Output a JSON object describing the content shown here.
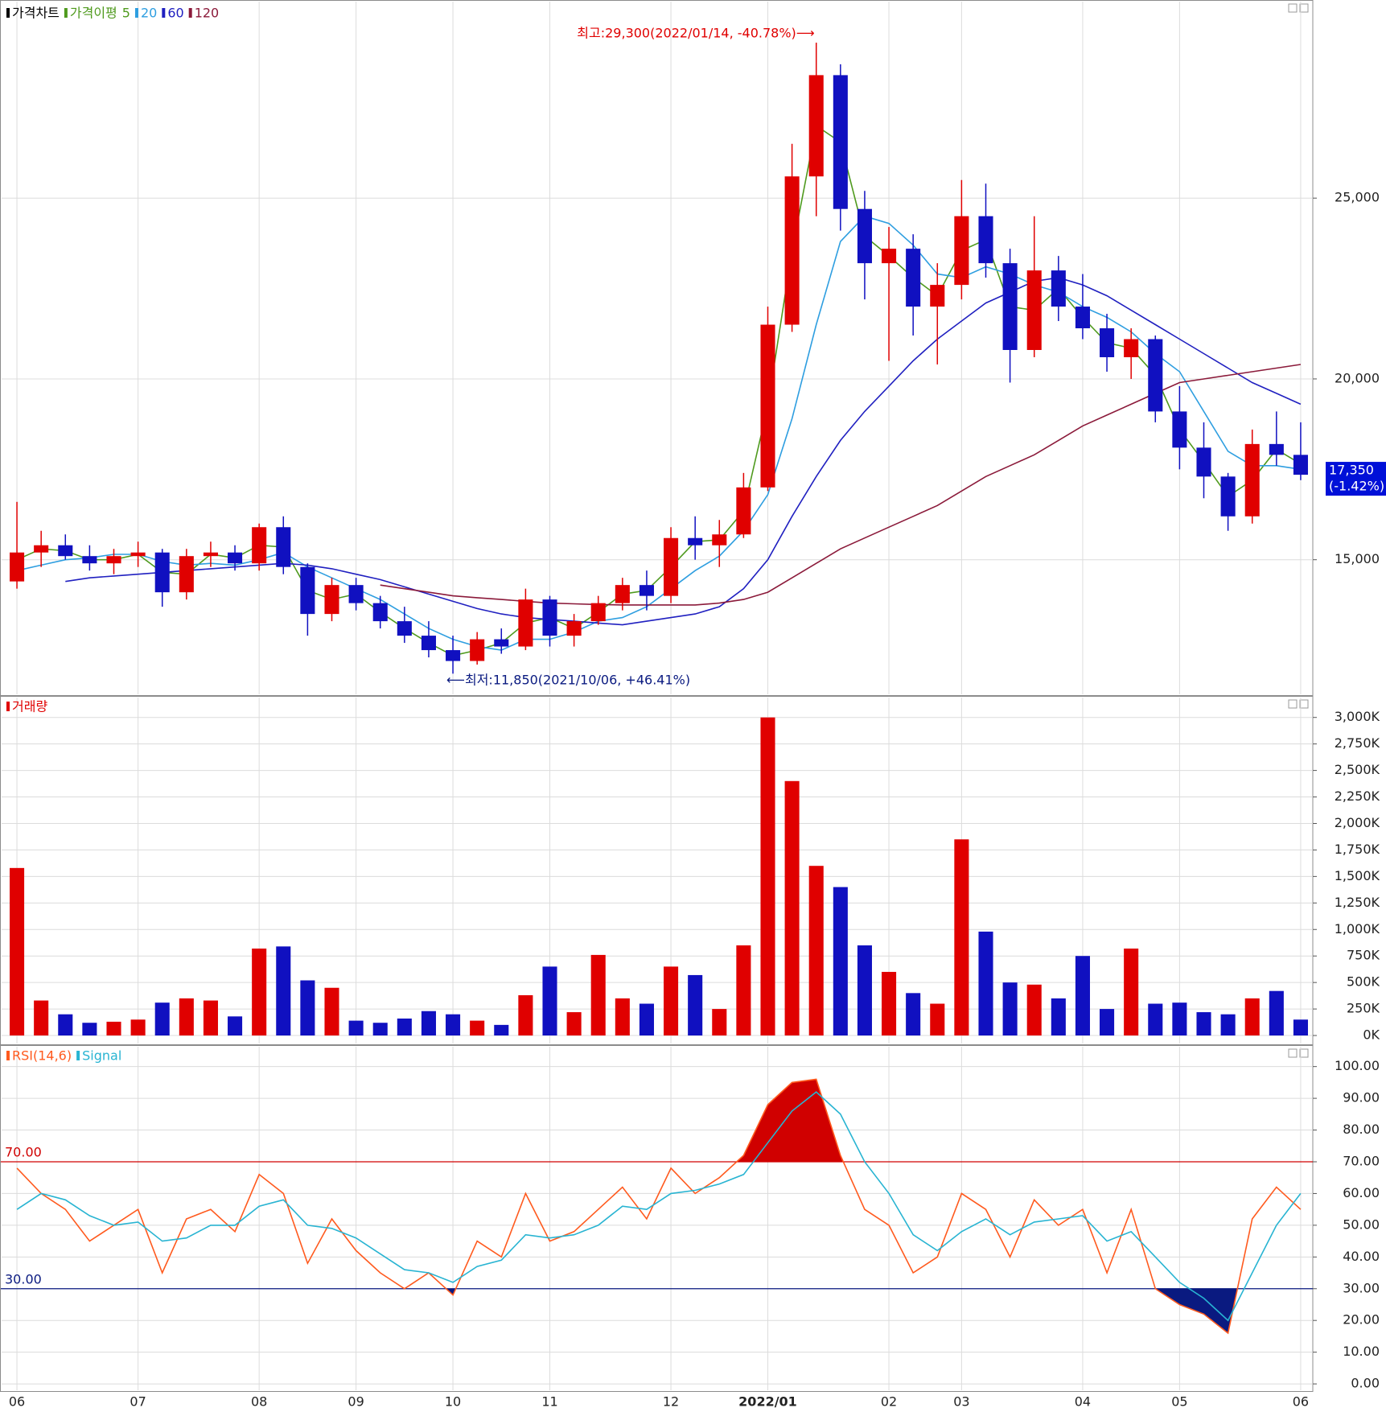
{
  "chart_data": [
    {
      "type": "candlestick",
      "title": "가격차트",
      "ma_title": "가격이평",
      "up_color": "#e00000",
      "down_color": "#1010c0",
      "open": [
        14400,
        15200,
        15400,
        15100,
        14900,
        15100,
        15200,
        14100,
        15100,
        15200,
        14900,
        15900,
        14800,
        13500,
        14300,
        13800,
        13300,
        12900,
        12500,
        12200,
        12800,
        12600,
        13900,
        12900,
        13300,
        13800,
        14300,
        14000,
        15600,
        15400,
        15700,
        17000,
        21500,
        25600,
        28400,
        24700,
        23200,
        23600,
        22000,
        22600,
        24500,
        23200,
        20800,
        23000,
        22000,
        21400,
        20600,
        21100,
        19100,
        18100,
        17300,
        16200,
        18200,
        17900
      ],
      "high": [
        16600,
        15800,
        15700,
        15400,
        15300,
        15500,
        15300,
        15300,
        15500,
        15400,
        16000,
        16200,
        14900,
        14500,
        14500,
        14000,
        13700,
        13300,
        12900,
        13000,
        13100,
        14200,
        14000,
        13500,
        14000,
        14500,
        14700,
        15900,
        16200,
        16100,
        17400,
        22000,
        26500,
        29300,
        28700,
        25200,
        24200,
        24000,
        23200,
        25500,
        25400,
        23600,
        24500,
        23400,
        22900,
        21800,
        21400,
        21200,
        19800,
        18800,
        17400,
        18600,
        19100,
        18800
      ],
      "low": [
        14200,
        14800,
        15000,
        14700,
        14600,
        14800,
        13700,
        13900,
        14800,
        14700,
        14700,
        14600,
        12900,
        13300,
        13600,
        13100,
        12700,
        12300,
        11850,
        12100,
        12400,
        12500,
        12600,
        12600,
        13200,
        13600,
        13600,
        13800,
        15000,
        14800,
        15600,
        16900,
        21300,
        24500,
        24100,
        22200,
        20500,
        21200,
        20400,
        22200,
        22800,
        19900,
        20600,
        21600,
        21100,
        20200,
        20000,
        18800,
        17500,
        16700,
        15800,
        16000,
        17600,
        17200
      ],
      "close": [
        15200,
        15400,
        15100,
        14900,
        15100,
        15200,
        14100,
        15100,
        15200,
        14900,
        15900,
        14800,
        13500,
        14300,
        13800,
        13300,
        12900,
        12500,
        12200,
        12800,
        12600,
        13900,
        12900,
        13300,
        13800,
        14300,
        14000,
        15600,
        15400,
        15700,
        17000,
        21500,
        25600,
        28400,
        24700,
        23200,
        23600,
        22000,
        22600,
        24500,
        23200,
        20800,
        23000,
        22000,
        21400,
        20600,
        21100,
        19100,
        18100,
        17300,
        16200,
        18200,
        17900,
        17350
      ],
      "series": [
        {
          "name": "5",
          "color": "#4f9a1e",
          "values": [
            15000,
            15300,
            15250,
            15000,
            15000,
            15150,
            14650,
            14600,
            15150,
            15050,
            15400,
            15350,
            14150,
            13900,
            14050,
            13550,
            13100,
            12700,
            12350,
            12500,
            12700,
            13250,
            13400,
            13100,
            13550,
            14050,
            14150,
            14800,
            15500,
            15550,
            16350,
            19250,
            23550,
            27000,
            26550,
            23950,
            23400,
            22800,
            22300,
            23550,
            23850,
            22000,
            21900,
            22500,
            21700,
            21000,
            20850,
            20100,
            18600,
            17700,
            16750,
            17200,
            18050,
            17650
          ]
        },
        {
          "name": "20",
          "color": "#2e9ee0",
          "values": [
            14700,
            14850,
            15000,
            15050,
            15150,
            15150,
            14950,
            14850,
            14900,
            14850,
            15000,
            15200,
            14800,
            14500,
            14200,
            13900,
            13500,
            13100,
            12800,
            12600,
            12500,
            12800,
            12800,
            13000,
            13300,
            13400,
            13700,
            14200,
            14700,
            15100,
            15800,
            16800,
            18900,
            21500,
            23800,
            24500,
            24300,
            23700,
            22900,
            22800,
            23100,
            22900,
            22600,
            22400,
            22000,
            21700,
            21300,
            20700,
            20200,
            19100,
            18000,
            17600,
            17600,
            17500
          ]
        },
        {
          "name": "60",
          "color": "#2020c0",
          "values": [
            null,
            null,
            14400,
            14500,
            14550,
            14600,
            14650,
            14700,
            14750,
            14800,
            14850,
            14900,
            14850,
            14750,
            14600,
            14450,
            14250,
            14050,
            13850,
            13650,
            13500,
            13400,
            13350,
            13300,
            13250,
            13200,
            13300,
            13400,
            13500,
            13700,
            14200,
            15000,
            16200,
            17300,
            18300,
            19100,
            19800,
            20500,
            21100,
            21600,
            22100,
            22400,
            22700,
            22800,
            22600,
            22300,
            21900,
            21500,
            21100,
            20700,
            20300,
            19900,
            19600,
            19300
          ]
        },
        {
          "name": "120",
          "color": "#8b1a3a",
          "values": [
            null,
            null,
            null,
            null,
            null,
            null,
            null,
            null,
            null,
            null,
            null,
            null,
            null,
            null,
            null,
            14300,
            14200,
            14100,
            14000,
            13950,
            13900,
            13850,
            13800,
            13780,
            13760,
            13750,
            13750,
            13750,
            13750,
            13800,
            13900,
            14100,
            14500,
            14900,
            15300,
            15600,
            15900,
            16200,
            16500,
            16900,
            17300,
            17600,
            17900,
            18300,
            18700,
            19000,
            19300,
            19600,
            19900,
            20000,
            20100,
            20200,
            20300,
            20400
          ]
        }
      ],
      "ylim": [
        11300,
        30300
      ],
      "yticks": [
        {
          "value": 15000,
          "label": "15,000"
        },
        {
          "value": 20000,
          "label": "20,000"
        },
        {
          "value": 25000,
          "label": "25,000"
        }
      ],
      "grid": true,
      "annotations": [
        "최고:29,300(2022/01/14, -40.78%)⟶",
        "⟵최저:11,850(2021/10/06, +46.41%)"
      ],
      "current": {
        "value": 17350,
        "label": "17,350",
        "change": "(-1.42%)"
      }
    },
    {
      "type": "bar",
      "series": [
        {
          "name": "거래량",
          "values": [
            1580,
            330,
            200,
            120,
            130,
            150,
            310,
            350,
            330,
            180,
            820,
            840,
            520,
            450,
            140,
            120,
            160,
            230,
            200,
            140,
            100,
            380,
            650,
            220,
            760,
            350,
            300,
            650,
            570,
            250,
            850,
            3000,
            2400,
            1600,
            1400,
            850,
            600,
            400,
            300,
            1850,
            980,
            500,
            480,
            350,
            750,
            250,
            820,
            300,
            310,
            220,
            200,
            350,
            420,
            150
          ]
        }
      ],
      "ylim": [
        -68,
        3180
      ],
      "yticks": [
        {
          "value": 0,
          "label": "0K"
        },
        {
          "value": 250,
          "label": "250K"
        },
        {
          "value": 500,
          "label": "500K"
        },
        {
          "value": 750,
          "label": "750K"
        },
        {
          "value": 1000,
          "label": "1,000K"
        },
        {
          "value": 1250,
          "label": "1,250K"
        },
        {
          "value": 1500,
          "label": "1,500K"
        },
        {
          "value": 1750,
          "label": "1,750K"
        },
        {
          "value": 2000,
          "label": "2,000K"
        },
        {
          "value": 2250,
          "label": "2,250K"
        },
        {
          "value": 2500,
          "label": "2,500K"
        },
        {
          "value": 2750,
          "label": "2,750K"
        },
        {
          "value": 3000,
          "label": "3,000K"
        }
      ],
      "grid": true
    },
    {
      "type": "line",
      "categories": [
        "06",
        null,
        null,
        null,
        null,
        "07",
        null,
        null,
        null,
        null,
        "08",
        null,
        null,
        null,
        "09",
        null,
        null,
        null,
        "10",
        null,
        null,
        null,
        "11",
        null,
        null,
        null,
        null,
        "12",
        null,
        null,
        null,
        "2022/01",
        null,
        null,
        null,
        null,
        "02",
        null,
        null,
        "03",
        null,
        null,
        null,
        null,
        "04",
        null,
        null,
        null,
        "05",
        null,
        null,
        null,
        null,
        "06"
      ],
      "series": [
        {
          "name": "RSI(14,6)",
          "color": "#ff5a1e",
          "values": [
            68,
            60,
            55,
            45,
            50,
            55,
            35,
            52,
            55,
            48,
            66,
            60,
            38,
            52,
            42,
            35,
            30,
            35,
            28,
            45,
            40,
            60,
            45,
            48,
            55,
            62,
            52,
            68,
            60,
            65,
            72,
            88,
            95,
            96,
            72,
            55,
            50,
            35,
            40,
            60,
            55,
            40,
            58,
            50,
            55,
            35,
            55,
            30,
            25,
            22,
            16,
            52,
            62,
            55
          ]
        },
        {
          "name": "Signal",
          "color": "#28b4d2",
          "values": [
            55,
            60,
            58,
            53,
            50,
            51,
            45,
            46,
            50,
            50,
            56,
            58,
            50,
            49,
            46,
            41,
            36,
            35,
            32,
            37,
            39,
            47,
            46,
            47,
            50,
            56,
            55,
            60,
            61,
            63,
            66,
            76,
            86,
            92,
            85,
            70,
            60,
            47,
            42,
            48,
            52,
            47,
            51,
            52,
            53,
            45,
            48,
            40,
            32,
            27,
            20,
            35,
            50,
            60
          ]
        }
      ],
      "levels": [
        {
          "value": 70,
          "label": "70.00",
          "color": "#d00000"
        },
        {
          "value": 30,
          "label": "30.00",
          "color": "#0a1a80"
        }
      ],
      "ylim": [
        -1.5,
        106
      ],
      "yticks": [
        {
          "value": 0,
          "label": "0.00"
        },
        {
          "value": 10,
          "label": "10.00"
        },
        {
          "value": 20,
          "label": "20.00"
        },
        {
          "value": 30,
          "label": "30.00"
        },
        {
          "value": 40,
          "label": "40.00"
        },
        {
          "value": 50,
          "label": "50.00"
        },
        {
          "value": 60,
          "label": "60.00"
        },
        {
          "value": 70,
          "label": "70.00"
        },
        {
          "value": 80,
          "label": "80.00"
        },
        {
          "value": 90,
          "label": "90.00"
        },
        {
          "value": 100,
          "label": "100.00"
        }
      ],
      "grid": true
    }
  ]
}
